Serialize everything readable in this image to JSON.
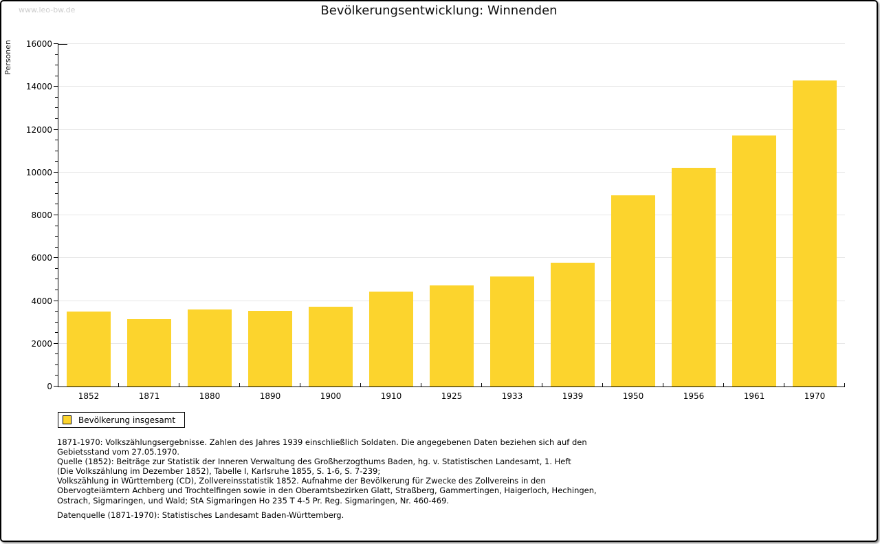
{
  "header": {
    "watermark": "www.leo-bw.de",
    "title": "Bevölkerungsentwicklung: Winnenden"
  },
  "chart_data": {
    "type": "bar",
    "title": "Bevölkerungsentwicklung: Winnenden",
    "xlabel": "",
    "ylabel": "Personen",
    "categories": [
      "1852",
      "1871",
      "1880",
      "1890",
      "1900",
      "1910",
      "1925",
      "1933",
      "1939",
      "1950",
      "1956",
      "1961",
      "1970"
    ],
    "values": [
      3510,
      3160,
      3600,
      3540,
      3730,
      4430,
      4730,
      5150,
      5790,
      8940,
      10230,
      11730,
      14300
    ],
    "ylim": [
      0,
      16000
    ],
    "y_major_step": 2000,
    "y_minor_step": 500,
    "grid": "horizontal-major",
    "bar_color": "#FCD42D",
    "gridline_color": "#e7e7e7",
    "legend_position": "bottom-left",
    "legend_entries": [
      "Bevölkerung insgesamt"
    ]
  },
  "legend": {
    "label": "Bevölkerung insgesamt"
  },
  "footer": {
    "lines": [
      "1871-1970: Volkszählungsergebnisse. Zahlen des Jahres 1939 einschließlich Soldaten. Die angegebenen Daten beziehen sich auf den",
      "Gebietsstand vom 27.05.1970.",
      "Quelle (1852): Beiträge zur Statistik der Inneren Verwaltung des Großherzogthums Baden, hg. v. Statistischen Landesamt, 1. Heft",
      "(Die Volkszählung im Dezember 1852), Tabelle I, Karlsruhe 1855, S. 1-6, S. 7-239;",
      "Volkszählung in Württemberg (CD), Zollvereinsstatistik 1852. Aufnahme der Bevölkerung für Zwecke des Zollvereins in den",
      "Obervogteiämtern Achberg und Trochtelfingen sowie in den Oberamtsbezirken Glatt, Straßberg, Gammertingen, Haigerloch, Hechingen,",
      "Ostrach, Sigmaringen, und Wald; StA Sigmaringen Ho 235 T 4-5 Pr. Reg. Sigmaringen, Nr. 460-469."
    ],
    "datasource": "Datenquelle (1871-1970): Statistisches Landesamt Baden-Württemberg."
  }
}
